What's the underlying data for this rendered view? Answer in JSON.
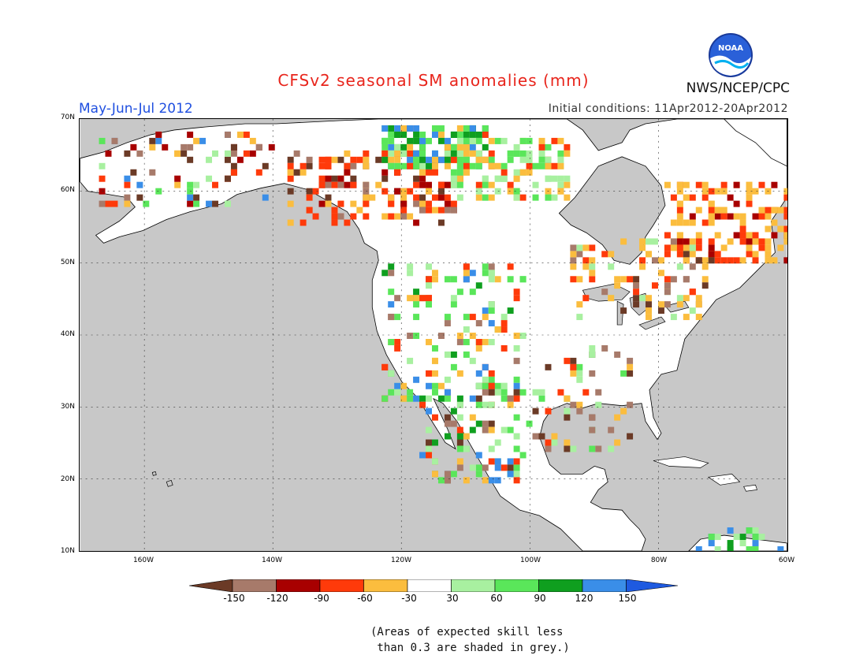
{
  "title": "CFSv2 seasonal SM anomalies (mm)",
  "period": "May-Jun-Jul 2012",
  "initial_conditions": "Initial conditions: 11Apr2012-20Apr2012",
  "agency": "NWS/NCEP/CPC",
  "logo_text": "NOAA",
  "map": {
    "lat_range": [
      10,
      70
    ],
    "lon_range": [
      -170,
      -60
    ],
    "lat_ticks": [
      "70N",
      "60N",
      "50N",
      "40N",
      "30N",
      "20N",
      "10N"
    ],
    "lon_ticks": [
      "160W",
      "140W",
      "120W",
      "100W",
      "80W",
      "60W"
    ],
    "grid": "dotted",
    "ocean_color": "#c8c8c8",
    "land_color": "#ffffff"
  },
  "colorbar": {
    "labels": [
      "-150",
      "-120",
      "-90",
      "-60",
      "-30",
      "30",
      "60",
      "90",
      "120",
      "150"
    ],
    "colors": [
      "#6b3a26",
      "#a77a6a",
      "#a80000",
      "#ff3a0a",
      "#fbbd3e",
      "#ffffff",
      "#a8f0a0",
      "#5ae65a",
      "#0f9f1f",
      "#3a8ee8",
      "#1e5ae0"
    ]
  },
  "footnote": "(Areas of expected skill less\n than 0.3 are shaded in grey.)"
}
